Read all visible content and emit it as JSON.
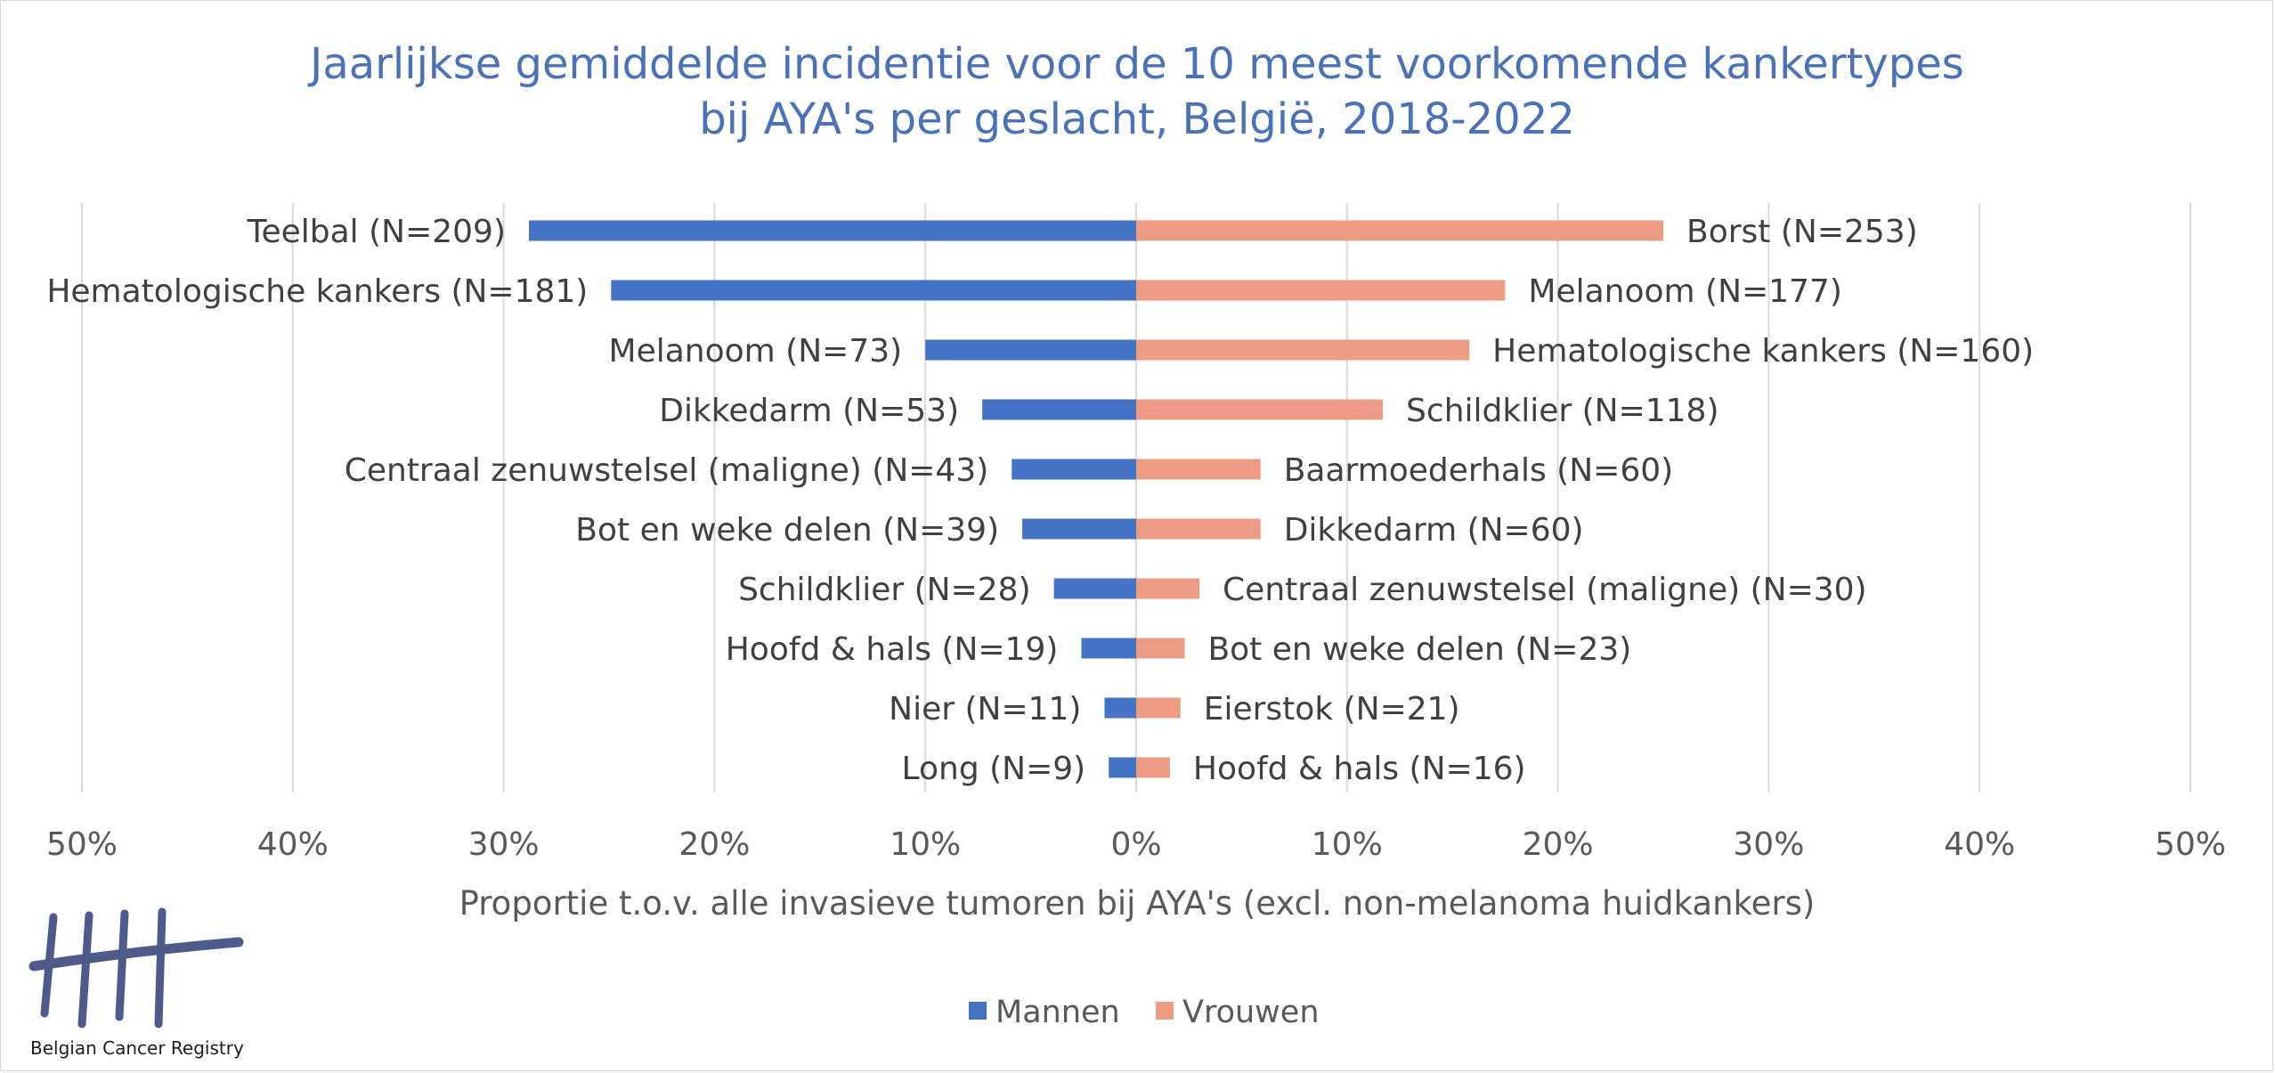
{
  "colors": {
    "mannen": "#4472c4",
    "vrouwen": "#ed9b82",
    "title": "#4a72b8",
    "grid": "#d9d9d9",
    "logo": "#4e5a8a"
  },
  "logo": {
    "text": "Belgian Cancer Registry",
    "icon": "tally-marks-logo-icon"
  },
  "chart_data": {
    "type": "bar",
    "orientation": "horizontal-diverging",
    "title": "Jaarlijkse gemiddelde incidentie voor de 10 meest voorkomende kankertypes bij AYA's per geslacht, België, 2018-2022",
    "title_lines": [
      "Jaarlijkse gemiddelde incidentie voor de 10 meest voorkomende kankertypes",
      "bij AYA's per geslacht, België, 2018-2022"
    ],
    "xlabel": "Proportie t.o.v. alle invasieve tumoren bij AYA's (excl. non-melanoma huidkankers)",
    "ylabel": "",
    "xlim": [
      -50,
      50
    ],
    "x_ticks": [
      -50,
      -40,
      -30,
      -20,
      -10,
      0,
      10,
      20,
      30,
      40,
      50
    ],
    "x_tick_labels": [
      "50%",
      "40%",
      "30%",
      "20%",
      "10%",
      "0%",
      "10%",
      "20%",
      "30%",
      "40%",
      "50%"
    ],
    "grid": true,
    "legend": {
      "placement": "bottom",
      "entries": [
        "Mannen",
        "Vrouwen"
      ]
    },
    "series": [
      {
        "name": "Mannen",
        "side": "left",
        "labels": [
          "Teelbal (N=209)",
          "Hematologische kankers (N=181)",
          "Melanoom (N=73)",
          "Dikkedarm (N=53)",
          "Centraal zenuwstelsel (maligne) (N=43)",
          "Bot en weke delen (N=39)",
          "Schildklier (N=28)",
          "Hoofd & hals (N=19)",
          "Nier (N=11)",
          "Long (N=9)"
        ],
        "values": [
          28.8,
          24.9,
          10.0,
          7.3,
          5.9,
          5.4,
          3.9,
          2.6,
          1.5,
          1.3
        ]
      },
      {
        "name": "Vrouwen",
        "side": "right",
        "labels": [
          "Borst (N=253)",
          "Melanoom (N=177)",
          "Hematologische kankers (N=160)",
          "Schildklier (N=118)",
          "Baarmoederhals (N=60)",
          "Dikkedarm (N=60)",
          "Centraal zenuwstelsel (maligne) (N=30)",
          "Bot en weke delen (N=23)",
          "Eierstok (N=21)",
          "Hoofd & hals (N=16)"
        ],
        "values": [
          25.0,
          17.5,
          15.8,
          11.7,
          5.9,
          5.9,
          3.0,
          2.3,
          2.1,
          1.6
        ]
      }
    ]
  }
}
